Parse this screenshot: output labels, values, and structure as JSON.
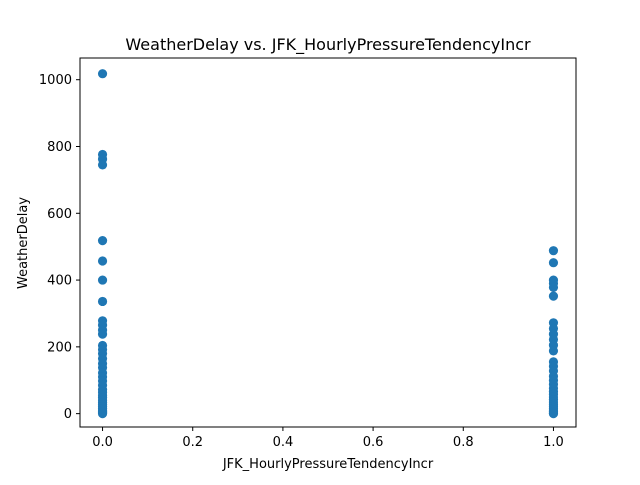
{
  "chart_data": {
    "type": "scatter",
    "title": "WeatherDelay vs. JFK_HourlyPressureTendencyIncr",
    "xlabel": "JFK_HourlyPressureTendencyIncr",
    "ylabel": "WeatherDelay",
    "xlim": [
      -0.05,
      1.05
    ],
    "ylim": [
      -40,
      1065
    ],
    "xticks": [
      0.0,
      0.2,
      0.4,
      0.6,
      0.8,
      1.0
    ],
    "xtick_labels": [
      "0.0",
      "0.2",
      "0.4",
      "0.6",
      "0.8",
      "1.0"
    ],
    "yticks": [
      0,
      200,
      400,
      600,
      800,
      1000
    ],
    "ytick_labels": [
      "0",
      "200",
      "400",
      "600",
      "800",
      "1000"
    ],
    "grid": false,
    "marker_color": "#1f77b4",
    "points": [
      {
        "x": 0,
        "y": 1018
      },
      {
        "x": 0,
        "y": 776
      },
      {
        "x": 0,
        "y": 762
      },
      {
        "x": 0,
        "y": 745
      },
      {
        "x": 0,
        "y": 518
      },
      {
        "x": 0,
        "y": 457
      },
      {
        "x": 0,
        "y": 400
      },
      {
        "x": 0,
        "y": 336
      },
      {
        "x": 0,
        "y": 278
      },
      {
        "x": 0,
        "y": 265
      },
      {
        "x": 0,
        "y": 250
      },
      {
        "x": 0,
        "y": 238
      },
      {
        "x": 0,
        "y": 204
      },
      {
        "x": 0,
        "y": 192
      },
      {
        "x": 0,
        "y": 180
      },
      {
        "x": 0,
        "y": 165
      },
      {
        "x": 0,
        "y": 150
      },
      {
        "x": 0,
        "y": 138
      },
      {
        "x": 0,
        "y": 122
      },
      {
        "x": 0,
        "y": 110
      },
      {
        "x": 0,
        "y": 98
      },
      {
        "x": 0,
        "y": 85
      },
      {
        "x": 0,
        "y": 72
      },
      {
        "x": 0,
        "y": 64
      },
      {
        "x": 0,
        "y": 55
      },
      {
        "x": 0,
        "y": 48
      },
      {
        "x": 0,
        "y": 40
      },
      {
        "x": 0,
        "y": 33
      },
      {
        "x": 0,
        "y": 27
      },
      {
        "x": 0,
        "y": 21
      },
      {
        "x": 0,
        "y": 15
      },
      {
        "x": 0,
        "y": 10
      },
      {
        "x": 0,
        "y": 6
      },
      {
        "x": 0,
        "y": 3
      },
      {
        "x": 0,
        "y": 0
      },
      {
        "x": 1,
        "y": 488
      },
      {
        "x": 1,
        "y": 452
      },
      {
        "x": 1,
        "y": 400
      },
      {
        "x": 1,
        "y": 390
      },
      {
        "x": 1,
        "y": 378
      },
      {
        "x": 1,
        "y": 352
      },
      {
        "x": 1,
        "y": 272
      },
      {
        "x": 1,
        "y": 255
      },
      {
        "x": 1,
        "y": 238
      },
      {
        "x": 1,
        "y": 222
      },
      {
        "x": 1,
        "y": 205
      },
      {
        "x": 1,
        "y": 188
      },
      {
        "x": 1,
        "y": 155
      },
      {
        "x": 1,
        "y": 142
      },
      {
        "x": 1,
        "y": 128
      },
      {
        "x": 1,
        "y": 112
      },
      {
        "x": 1,
        "y": 100
      },
      {
        "x": 1,
        "y": 88
      },
      {
        "x": 1,
        "y": 76
      },
      {
        "x": 1,
        "y": 66
      },
      {
        "x": 1,
        "y": 58
      },
      {
        "x": 1,
        "y": 50
      },
      {
        "x": 1,
        "y": 42
      },
      {
        "x": 1,
        "y": 35
      },
      {
        "x": 1,
        "y": 28
      },
      {
        "x": 1,
        "y": 22
      },
      {
        "x": 1,
        "y": 16
      },
      {
        "x": 1,
        "y": 11
      },
      {
        "x": 1,
        "y": 6
      },
      {
        "x": 1,
        "y": 2
      },
      {
        "x": 1,
        "y": 0
      }
    ]
  }
}
